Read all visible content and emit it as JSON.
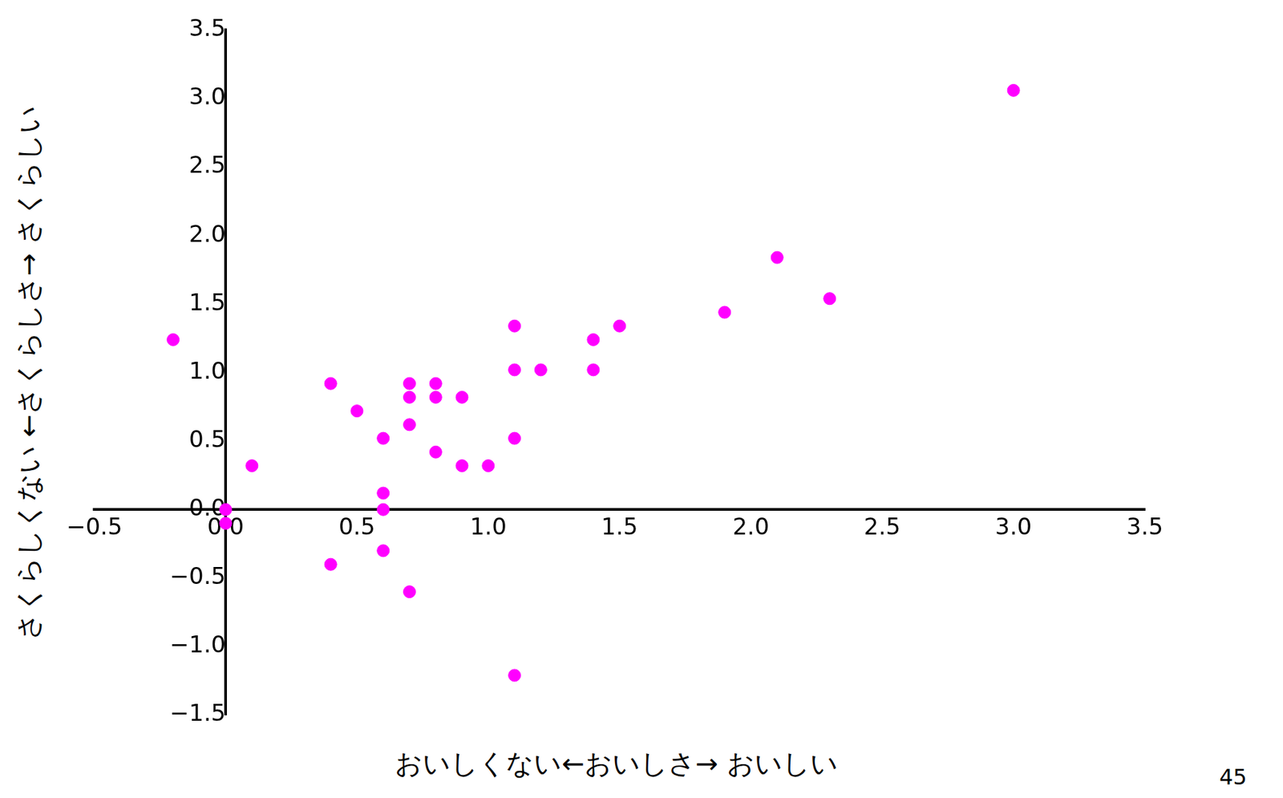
{
  "chart_data": {
    "type": "scatter",
    "x_label": "おいしくない←おいしさ→ おいしい",
    "y_label": "さくらしくない ←さくらしさ→ さくらしい",
    "annotations": [
      "45"
    ],
    "color": "#ff00ff",
    "marker": "circle",
    "grid": false,
    "x": [
      -0.2,
      0.1,
      0,
      0,
      0.4,
      0.5,
      0.4,
      0.6,
      0.6,
      0.6,
      0.6,
      0.7,
      0.7,
      0.7,
      0.7,
      0.8,
      0.8,
      0.8,
      0.9,
      0.9,
      1.0,
      1.1,
      1.1,
      1.1,
      1.1,
      1.2,
      1.4,
      1.4,
      1.5,
      1.9,
      2.1,
      2.3,
      3.0
    ],
    "values": [
      1.24,
      0.32,
      0.0,
      -0.1,
      0.92,
      0.72,
      -0.4,
      0.52,
      0.12,
      0.0,
      -0.3,
      0.92,
      0.82,
      0.62,
      -0.6,
      0.92,
      0.82,
      0.42,
      0.82,
      0.32,
      0.32,
      1.34,
      1.02,
      0.52,
      -1.21,
      1.02,
      1.24,
      1.02,
      1.34,
      1.44,
      1.84,
      1.54,
      3.06
    ],
    "xlim": [
      -0.5,
      3.5
    ],
    "xticks": [
      {
        "value": -0.5,
        "label": "−0.5"
      },
      {
        "value": 0,
        "label": "0.0"
      },
      0.5,
      {
        "value": 1,
        "label": "1.0"
      },
      1.5,
      {
        "value": 2,
        "label": "2.0"
      },
      2.5,
      {
        "value": 3,
        "label": "3.0"
      },
      3.5
    ],
    "ylim": [
      -1.5,
      3.5
    ],
    "yticks": [
      {
        "value": -1.5,
        "label": "−1.5"
      },
      {
        "value": -1,
        "label": "−1.0"
      },
      {
        "value": -0.5,
        "label": "−0.5"
      },
      {
        "value": 0,
        "label": "0.0"
      },
      0.5,
      {
        "value": 1,
        "label": "1.0"
      },
      1.5,
      {
        "value": 2,
        "label": "2.0"
      },
      2.5,
      {
        "value": 3,
        "label": "3.0"
      },
      3.5
    ]
  }
}
